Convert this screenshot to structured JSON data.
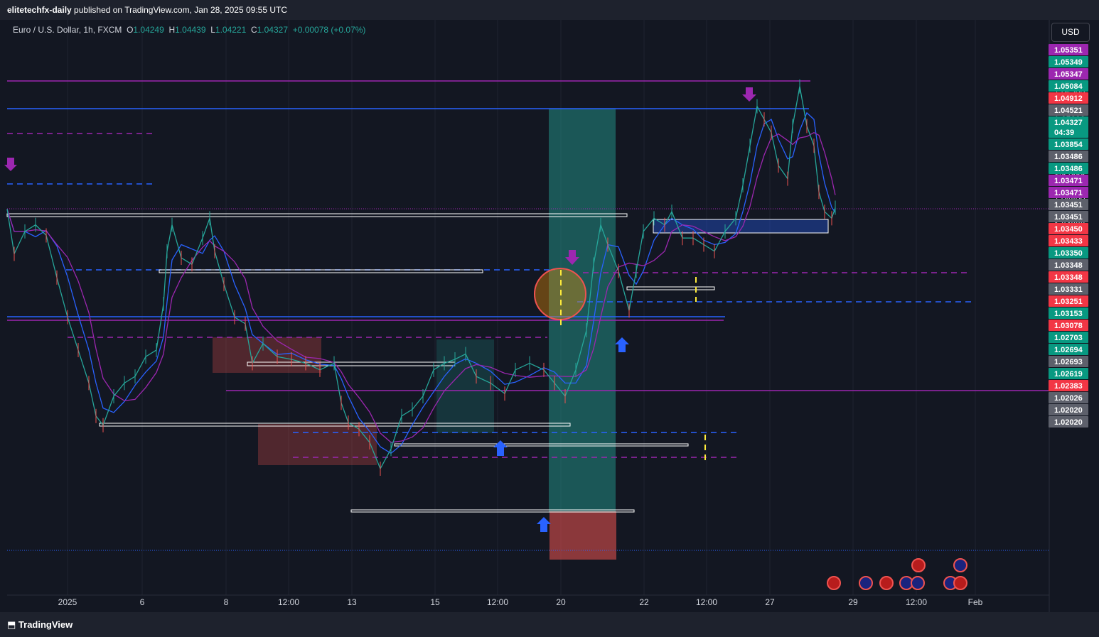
{
  "header": {
    "publisher": "elitetechfx-daily",
    "published_text": " published on TradingView.com, Jan 28, 2025 09:55 UTC"
  },
  "legend": {
    "symbol": "Euro / U.S. Dollar, 1h, FXCM",
    "o_key": "O",
    "o_val": "1.04249",
    "h_key": "H",
    "h_val": "1.04439",
    "l_key": "L",
    "l_val": "1.04221",
    "c_key": "C",
    "c_val": "1.04327",
    "change": "+0.00078 (+0.07%)"
  },
  "currency_button": "USD",
  "footer": {
    "brand": "TradingView"
  },
  "colors": {
    "background": "#131722",
    "up": "#26a69a",
    "down": "#ef5350",
    "purple": "#9c27b0",
    "blue": "#2962ff"
  },
  "chart_data": {
    "type": "line",
    "ylim": [
      1.0195,
      1.0545
    ],
    "y_ticks": [
      "1.05200",
      "1.05000",
      "1.04800",
      "1.04600",
      "1.04400",
      "1.04200",
      "1.04000",
      "1.03800",
      "1.03600"
    ],
    "x_ticks": [
      "2025",
      "6",
      "8",
      "12:00",
      "13",
      "15",
      "12:00",
      "20",
      "22",
      "12:00",
      "27",
      "29",
      "12:00",
      "Feb"
    ],
    "price_labels": [
      {
        "text": "1.05351",
        "color": "#9c27b0"
      },
      {
        "text": "1.05349",
        "color": "#089981"
      },
      {
        "text": "1.05347",
        "color": "#9c27b0"
      },
      {
        "text": "1.05084",
        "color": "#089981"
      },
      {
        "text": "1.04912",
        "color": "#f23645"
      },
      {
        "text": "1.04521",
        "color": "#5d606b"
      },
      {
        "text": "1.04327",
        "color": "#089981",
        "sub": "04:39"
      },
      {
        "text": "1.03854",
        "color": "#089981"
      },
      {
        "text": "1.03486",
        "color": "#5d606b"
      },
      {
        "text": "1.03486",
        "color": "#089981"
      },
      {
        "text": "1.03471",
        "color": "#9c27b0"
      },
      {
        "text": "1.03471",
        "color": "#9c27b0"
      },
      {
        "text": "1.03451",
        "color": "#5d606b"
      },
      {
        "text": "1.03451",
        "color": "#5d606b"
      },
      {
        "text": "1.03450",
        "color": "#f23645"
      },
      {
        "text": "1.03433",
        "color": "#f23645"
      },
      {
        "text": "1.03350",
        "color": "#089981"
      },
      {
        "text": "1.03348",
        "color": "#5d606b"
      },
      {
        "text": "1.03348",
        "color": "#f23645"
      },
      {
        "text": "1.03331",
        "color": "#5d606b"
      },
      {
        "text": "1.03251",
        "color": "#f23645"
      },
      {
        "text": "1.03153",
        "color": "#089981"
      },
      {
        "text": "1.03078",
        "color": "#f23645"
      },
      {
        "text": "1.02703",
        "color": "#089981"
      },
      {
        "text": "1.02694",
        "color": "#089981"
      },
      {
        "text": "1.02693",
        "color": "#5d606b"
      },
      {
        "text": "1.02619",
        "color": "#089981"
      },
      {
        "text": "1.02383",
        "color": "#f23645"
      },
      {
        "text": "1.02026",
        "color": "#5d606b"
      },
      {
        "text": "1.02020",
        "color": "#5d606b"
      },
      {
        "text": "1.02020",
        "color": "#5d606b"
      }
    ],
    "price_path": [
      [
        0,
        1.0432
      ],
      [
        10,
        1.0398
      ],
      [
        25,
        1.0415
      ],
      [
        40,
        1.042
      ],
      [
        55,
        1.0412
      ],
      [
        70,
        1.038
      ],
      [
        85,
        1.035
      ],
      [
        100,
        1.0325
      ],
      [
        115,
        1.03
      ],
      [
        125,
        1.0275
      ],
      [
        135,
        1.0268
      ],
      [
        150,
        1.029
      ],
      [
        165,
        1.03
      ],
      [
        180,
        1.0305
      ],
      [
        195,
        1.032
      ],
      [
        210,
        1.0325
      ],
      [
        220,
        1.036
      ],
      [
        225,
        1.04
      ],
      [
        232,
        1.042
      ],
      [
        245,
        1.0395
      ],
      [
        260,
        1.039
      ],
      [
        275,
        1.041
      ],
      [
        285,
        1.0425
      ],
      [
        292,
        1.04
      ],
      [
        305,
        1.0375
      ],
      [
        320,
        1.035
      ],
      [
        335,
        1.0345
      ],
      [
        345,
        1.0315
      ],
      [
        360,
        1.033
      ],
      [
        380,
        1.032
      ],
      [
        400,
        1.0318
      ],
      [
        420,
        1.0315
      ],
      [
        440,
        1.031
      ],
      [
        460,
        1.0315
      ],
      [
        470,
        1.0285
      ],
      [
        480,
        1.027
      ],
      [
        495,
        1.0265
      ],
      [
        510,
        1.0255
      ],
      [
        525,
        1.0235
      ],
      [
        540,
        1.025
      ],
      [
        555,
        1.0275
      ],
      [
        570,
        1.028
      ],
      [
        585,
        1.029
      ],
      [
        600,
        1.031
      ],
      [
        615,
        1.0315
      ],
      [
        630,
        1.0318
      ],
      [
        645,
        1.0322
      ],
      [
        660,
        1.0305
      ],
      [
        680,
        1.03
      ],
      [
        700,
        1.0292
      ],
      [
        715,
        1.031
      ],
      [
        735,
        1.0315
      ],
      [
        755,
        1.031
      ],
      [
        770,
        1.03
      ],
      [
        785,
        1.029
      ],
      [
        800,
        1.031
      ],
      [
        815,
        1.034
      ],
      [
        825,
        1.039
      ],
      [
        835,
        1.042
      ],
      [
        845,
        1.0405
      ],
      [
        860,
        1.0385
      ],
      [
        875,
        1.0355
      ],
      [
        885,
        1.0385
      ],
      [
        895,
        1.0415
      ],
      [
        910,
        1.0425
      ],
      [
        925,
        1.042
      ],
      [
        935,
        1.043
      ],
      [
        950,
        1.041
      ],
      [
        965,
        1.041
      ],
      [
        980,
        1.0405
      ],
      [
        995,
        1.04
      ],
      [
        1010,
        1.0415
      ],
      [
        1025,
        1.0425
      ],
      [
        1035,
        1.045
      ],
      [
        1045,
        1.048
      ],
      [
        1055,
        1.051
      ],
      [
        1065,
        1.05
      ],
      [
        1075,
        1.049
      ],
      [
        1085,
        1.0465
      ],
      [
        1098,
        1.0455
      ],
      [
        1105,
        1.0495
      ],
      [
        1115,
        1.0525
      ],
      [
        1125,
        1.0495
      ],
      [
        1135,
        1.048
      ],
      [
        1142,
        1.0445
      ],
      [
        1150,
        1.043
      ],
      [
        1160,
        1.0425
      ],
      [
        1165,
        1.0433
      ]
    ]
  }
}
